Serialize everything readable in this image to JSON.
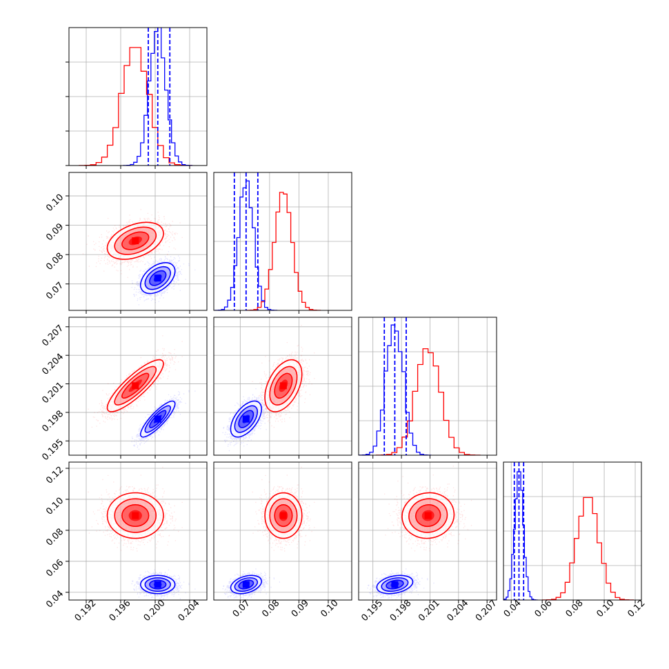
{
  "chart_data": {
    "type": "corner",
    "n_params": 4,
    "grid": true,
    "colors": {
      "primary": "#0000ff",
      "secondary": "#ff0000"
    },
    "params": [
      {
        "range": [
          0.19,
          0.206
        ],
        "ticks": [
          "0.192",
          "0.196",
          "0.200",
          "0.204"
        ],
        "tick_values": [
          0.192,
          0.196,
          0.2,
          0.204
        ]
      },
      {
        "range": [
          0.061,
          0.108
        ],
        "ticks": [
          "0.07",
          "0.08",
          "0.09",
          "0.10"
        ],
        "tick_values": [
          0.07,
          0.08,
          0.09,
          0.1
        ]
      },
      {
        "range": [
          0.1935,
          0.208
        ],
        "ticks": [
          "0.195",
          "0.198",
          "0.201",
          "0.204",
          "0.207"
        ],
        "tick_values": [
          0.195,
          0.198,
          0.201,
          0.204,
          0.207
        ]
      },
      {
        "range": [
          0.035,
          0.124
        ],
        "ticks": [
          "0.04",
          "0.06",
          "0.08",
          "0.10",
          "0.12"
        ],
        "tick_values": [
          0.04,
          0.06,
          0.08,
          0.1,
          0.12
        ]
      }
    ],
    "series": [
      {
        "color": "#0000ff",
        "mean": [
          0.2003,
          0.072,
          0.1973,
          0.045
        ],
        "std": [
          0.00095,
          0.0025,
          0.0009,
          0.0028
        ],
        "corr": [
          [
            0,
            1,
            0.45
          ],
          [
            0,
            2,
            0.85
          ],
          [
            1,
            2,
            0.55
          ],
          [
            1,
            3,
            0.35
          ],
          [
            2,
            3,
            0.3
          ]
        ],
        "quantiles": [
          [
            0.1992,
            0.2003,
            0.2017
          ],
          [
            0.068,
            0.072,
            0.076
          ],
          [
            0.1962,
            0.1973,
            0.1985
          ],
          [
            0.042,
            0.045,
            0.048
          ]
        ],
        "hist_peak": [
          1.08,
          1.06,
          1.06,
          1.0
        ]
      },
      {
        "color": "#ff0000",
        "mean": [
          0.1977,
          0.0847,
          0.2008,
          0.0895
        ],
        "std": [
          0.00155,
          0.003,
          0.0013,
          0.007
        ],
        "corr": [
          [
            0,
            1,
            0.4
          ],
          [
            0,
            2,
            0.85
          ],
          [
            1,
            2,
            0.45
          ],
          [
            1,
            3,
            0.0
          ],
          [
            2,
            3,
            0.05
          ]
        ],
        "quantiles": [],
        "hist_peak": [
          0.92,
          0.92,
          0.83,
          0.82
        ]
      }
    ]
  }
}
